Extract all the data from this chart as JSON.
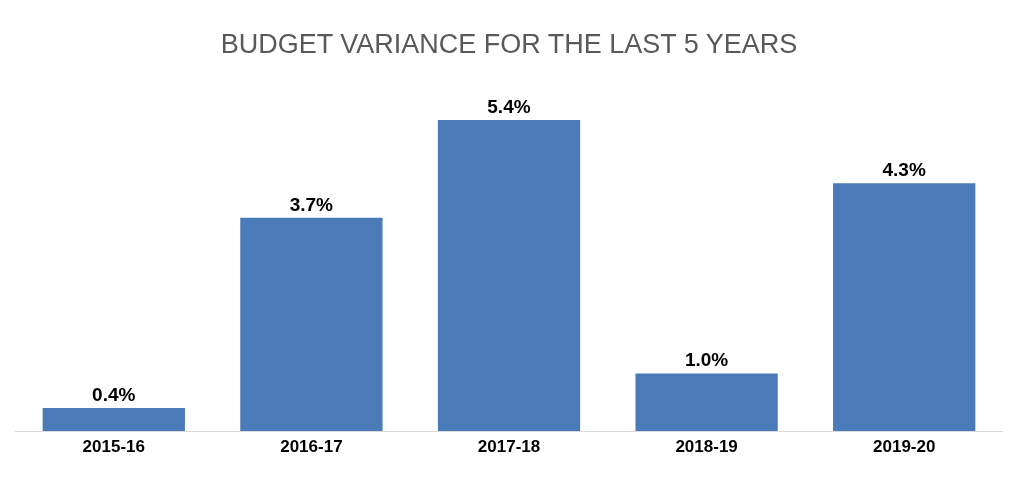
{
  "chart_data": {
    "type": "bar",
    "title": "BUDGET VARIANCE FOR THE LAST 5 YEARS",
    "categories": [
      "2015-16",
      "2016-17",
      "2017-18",
      "2018-19",
      "2019-20"
    ],
    "values": [
      0.4,
      3.7,
      5.4,
      1.0,
      4.3
    ],
    "value_labels": [
      "0.4%",
      "3.7%",
      "5.4%",
      "1.0%",
      "4.3%"
    ],
    "color": "#4a7ab8"
  }
}
